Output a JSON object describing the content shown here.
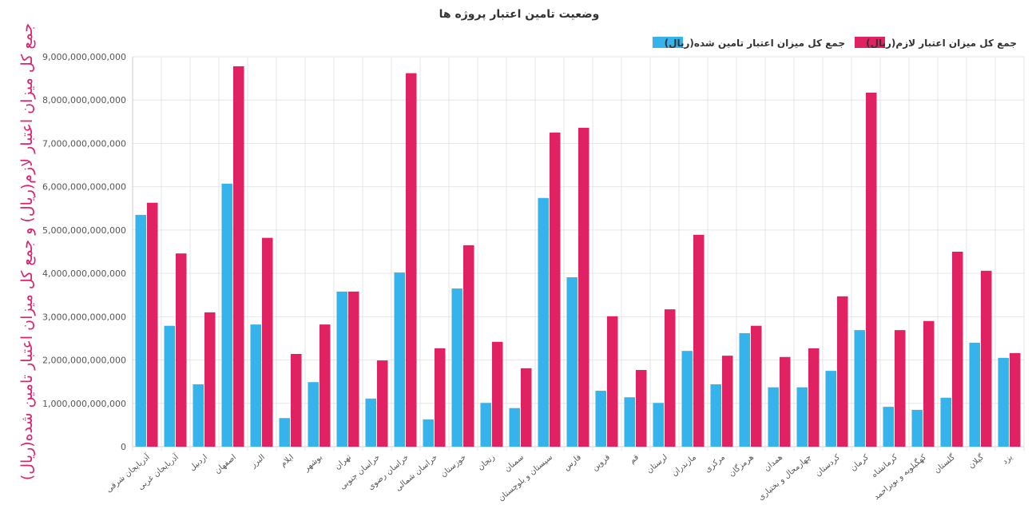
{
  "chart_data": {
    "type": "bar",
    "title": "وضعیت تامین اعتبار پروژه ها",
    "ylabel": "جمع کل میزان اعتبار لازم(ریال) و جمع کل میزان اعتبار تامین شده(ریال)",
    "xlabel": "",
    "ylim": [
      0,
      9000000000000
    ],
    "yticks": [
      0,
      1000000000000,
      2000000000000,
      3000000000000,
      4000000000000,
      5000000000000,
      6000000000000,
      7000000000000,
      8000000000000,
      9000000000000
    ],
    "grid": true,
    "legend_position": "top-right",
    "categories": [
      "آذربایجان شرقی",
      "آذربایجان غربی",
      "اردبیل",
      "اصفهان",
      "البرز",
      "ایلام",
      "بوشهر",
      "تهران",
      "خراسان جنوبی",
      "خراسان رضوی",
      "خراسان شمالی",
      "خوزستان",
      "زنجان",
      "سمنان",
      "سیستان و بلوچستان",
      "فارس",
      "قزوین",
      "قم",
      "لرستان",
      "مازندران",
      "مرکزی",
      "هرمزگان",
      "همدان",
      "چهارمحال و بختیاری",
      "کردستان",
      "کرمان",
      "کرمانشاه",
      "کهگیلویه و بویراحمد",
      "گلستان",
      "گیلان",
      "یزد"
    ],
    "series": [
      {
        "name": "جمع کل میزان اعتبار تامین شده(ریال)",
        "color": "#36b3eb",
        "values": [
          5350000000000,
          2790000000000,
          1440000000000,
          6070000000000,
          2820000000000,
          660000000000,
          1490000000000,
          3580000000000,
          1110000000000,
          4020000000000,
          630000000000,
          3650000000000,
          1010000000000,
          890000000000,
          5740000000000,
          3910000000000,
          1290000000000,
          1140000000000,
          1010000000000,
          2210000000000,
          1440000000000,
          2620000000000,
          1370000000000,
          1370000000000,
          1750000000000,
          2690000000000,
          920000000000,
          850000000000,
          1130000000000,
          2400000000000,
          2050000000000
        ]
      },
      {
        "name": "جمع کل میزان اعتبار لازم(ریال)",
        "color": "#e02262",
        "values": [
          5630000000000,
          4460000000000,
          3100000000000,
          8780000000000,
          4820000000000,
          2140000000000,
          2820000000000,
          3580000000000,
          1990000000000,
          8620000000000,
          2270000000000,
          4650000000000,
          2420000000000,
          1810000000000,
          7250000000000,
          7360000000000,
          3010000000000,
          1770000000000,
          3170000000000,
          4890000000000,
          2100000000000,
          2790000000000,
          2070000000000,
          2270000000000,
          3470000000000,
          8170000000000,
          2690000000000,
          2900000000000,
          4500000000000,
          4060000000000,
          2160000000000
        ]
      }
    ]
  }
}
